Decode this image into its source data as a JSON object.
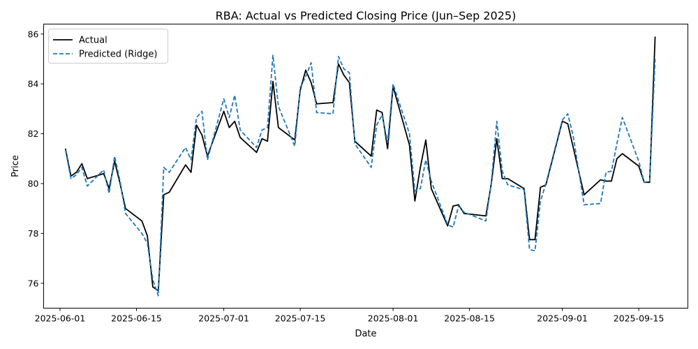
{
  "chart_data": {
    "type": "line",
    "title": "RBA: Actual vs Predicted Closing Price (Jun–Sep 2025)",
    "xlabel": "Date",
    "ylabel": "Price",
    "xlim": [
      "2025-05-29",
      "2025-09-24"
    ],
    "ylim": [
      75.0,
      86.4
    ],
    "x_ticks": [
      "2025-06-01",
      "2025-06-15",
      "2025-07-01",
      "2025-07-15",
      "2025-08-01",
      "2025-08-15",
      "2025-09-01",
      "2025-09-15"
    ],
    "y_ticks": [
      76,
      78,
      80,
      82,
      84,
      86
    ],
    "legend_position": "top-left",
    "grid": false,
    "series": [
      {
        "name": "Actual",
        "color": "#000000",
        "style": "solid",
        "points": [
          [
            "2025-06-02",
            81.4
          ],
          [
            "2025-06-03",
            80.3
          ],
          [
            "2025-06-04",
            80.45
          ],
          [
            "2025-06-05",
            80.8
          ],
          [
            "2025-06-06",
            80.2
          ],
          [
            "2025-06-09",
            80.4
          ],
          [
            "2025-06-10",
            79.8
          ],
          [
            "2025-06-11",
            80.9
          ],
          [
            "2025-06-12",
            80.0
          ],
          [
            "2025-06-13",
            79.0
          ],
          [
            "2025-06-16",
            78.5
          ],
          [
            "2025-06-17",
            77.9
          ],
          [
            "2025-06-18",
            75.85
          ],
          [
            "2025-06-19",
            75.7
          ],
          [
            "2025-06-20",
            79.55
          ],
          [
            "2025-06-21",
            79.65
          ],
          [
            "2025-06-24",
            80.75
          ],
          [
            "2025-06-25",
            80.45
          ],
          [
            "2025-06-26",
            82.35
          ],
          [
            "2025-06-27",
            81.95
          ],
          [
            "2025-06-28",
            81.1
          ],
          [
            "2025-07-01",
            82.9
          ],
          [
            "2025-07-02",
            82.25
          ],
          [
            "2025-07-03",
            82.5
          ],
          [
            "2025-07-04",
            81.85
          ],
          [
            "2025-07-07",
            81.25
          ],
          [
            "2025-07-08",
            81.8
          ],
          [
            "2025-07-09",
            81.7
          ],
          [
            "2025-07-10",
            84.1
          ],
          [
            "2025-07-11",
            82.25
          ],
          [
            "2025-07-14",
            81.75
          ],
          [
            "2025-07-15",
            83.75
          ],
          [
            "2025-07-16",
            84.55
          ],
          [
            "2025-07-17",
            84.05
          ],
          [
            "2025-07-18",
            83.2
          ],
          [
            "2025-07-21",
            83.25
          ],
          [
            "2025-07-22",
            84.8
          ],
          [
            "2025-07-23",
            84.35
          ],
          [
            "2025-07-24",
            84.05
          ],
          [
            "2025-07-25",
            81.7
          ],
          [
            "2025-07-28",
            81.1
          ],
          [
            "2025-07-29",
            82.95
          ],
          [
            "2025-07-30",
            82.85
          ],
          [
            "2025-07-31",
            81.4
          ],
          [
            "2025-08-01",
            83.9
          ],
          [
            "2025-08-04",
            81.55
          ],
          [
            "2025-08-05",
            79.3
          ],
          [
            "2025-08-06",
            80.65
          ],
          [
            "2025-08-07",
            81.75
          ],
          [
            "2025-08-08",
            79.8
          ],
          [
            "2025-08-11",
            78.3
          ],
          [
            "2025-08-12",
            79.1
          ],
          [
            "2025-08-13",
            79.15
          ],
          [
            "2025-08-14",
            78.8
          ],
          [
            "2025-08-18",
            78.7
          ],
          [
            "2025-08-19",
            80.0
          ],
          [
            "2025-08-20",
            81.8
          ],
          [
            "2025-08-21",
            80.2
          ],
          [
            "2025-08-22",
            80.2
          ],
          [
            "2025-08-25",
            79.8
          ],
          [
            "2025-08-26",
            77.75
          ],
          [
            "2025-08-27",
            77.75
          ],
          [
            "2025-08-28",
            79.85
          ],
          [
            "2025-08-29",
            79.95
          ],
          [
            "2025-09-01",
            82.5
          ],
          [
            "2025-09-02",
            82.4
          ],
          [
            "2025-09-05",
            79.55
          ],
          [
            "2025-09-08",
            80.15
          ],
          [
            "2025-09-09",
            80.1
          ],
          [
            "2025-09-10",
            80.1
          ],
          [
            "2025-09-11",
            81.0
          ],
          [
            "2025-09-12",
            81.2
          ],
          [
            "2025-09-15",
            80.7
          ],
          [
            "2025-09-16",
            80.05
          ],
          [
            "2025-09-17",
            80.05
          ],
          [
            "2025-09-18",
            85.9
          ]
        ]
      },
      {
        "name": "Predicted (Ridge)",
        "color": "#1f77b4",
        "style": "dashed",
        "points": [
          [
            "2025-06-02",
            81.35
          ],
          [
            "2025-06-03",
            80.2
          ],
          [
            "2025-06-04",
            80.35
          ],
          [
            "2025-06-05",
            80.65
          ],
          [
            "2025-06-06",
            79.9
          ],
          [
            "2025-06-09",
            80.55
          ],
          [
            "2025-06-10",
            79.6
          ],
          [
            "2025-06-11",
            81.1
          ],
          [
            "2025-06-12",
            80.1
          ],
          [
            "2025-06-13",
            78.8
          ],
          [
            "2025-06-16",
            78.0
          ],
          [
            "2025-06-17",
            77.6
          ],
          [
            "2025-06-18",
            76.15
          ],
          [
            "2025-06-19",
            75.5
          ],
          [
            "2025-06-20",
            80.65
          ],
          [
            "2025-06-21",
            80.45
          ],
          [
            "2025-06-24",
            81.45
          ],
          [
            "2025-06-25",
            80.95
          ],
          [
            "2025-06-26",
            82.65
          ],
          [
            "2025-06-27",
            82.9
          ],
          [
            "2025-06-28",
            80.95
          ],
          [
            "2025-07-01",
            83.4
          ],
          [
            "2025-07-02",
            82.65
          ],
          [
            "2025-07-03",
            83.55
          ],
          [
            "2025-07-04",
            82.15
          ],
          [
            "2025-07-07",
            81.45
          ],
          [
            "2025-07-08",
            82.15
          ],
          [
            "2025-07-09",
            82.25
          ],
          [
            "2025-07-10",
            85.15
          ],
          [
            "2025-07-11",
            83.1
          ],
          [
            "2025-07-14",
            81.5
          ],
          [
            "2025-07-15",
            83.85
          ],
          [
            "2025-07-16",
            84.3
          ],
          [
            "2025-07-17",
            84.85
          ],
          [
            "2025-07-18",
            82.85
          ],
          [
            "2025-07-21",
            82.8
          ],
          [
            "2025-07-22",
            85.1
          ],
          [
            "2025-07-23",
            84.6
          ],
          [
            "2025-07-24",
            84.45
          ],
          [
            "2025-07-25",
            81.6
          ],
          [
            "2025-07-28",
            80.65
          ],
          [
            "2025-07-29",
            82.35
          ],
          [
            "2025-07-30",
            82.75
          ],
          [
            "2025-07-31",
            81.65
          ],
          [
            "2025-08-01",
            84.0
          ],
          [
            "2025-08-04",
            82.0
          ],
          [
            "2025-08-05",
            79.7
          ],
          [
            "2025-08-06",
            79.8
          ],
          [
            "2025-08-07",
            80.95
          ],
          [
            "2025-08-08",
            80.1
          ],
          [
            "2025-08-11",
            78.35
          ],
          [
            "2025-08-12",
            78.25
          ],
          [
            "2025-08-13",
            79.1
          ],
          [
            "2025-08-14",
            78.85
          ],
          [
            "2025-08-18",
            78.5
          ],
          [
            "2025-08-19",
            80.05
          ],
          [
            "2025-08-20",
            82.5
          ],
          [
            "2025-08-21",
            80.5
          ],
          [
            "2025-08-22",
            79.95
          ],
          [
            "2025-08-25",
            79.75
          ],
          [
            "2025-08-26",
            77.35
          ],
          [
            "2025-08-27",
            77.3
          ],
          [
            "2025-08-28",
            79.3
          ],
          [
            "2025-08-29",
            80.0
          ],
          [
            "2025-09-01",
            82.55
          ],
          [
            "2025-09-02",
            82.8
          ],
          [
            "2025-09-03",
            81.9
          ],
          [
            "2025-09-05",
            79.15
          ],
          [
            "2025-09-08",
            79.2
          ],
          [
            "2025-09-09",
            80.45
          ],
          [
            "2025-09-10",
            80.5
          ],
          [
            "2025-09-11",
            81.6
          ],
          [
            "2025-09-12",
            82.65
          ],
          [
            "2025-09-15",
            80.9
          ],
          [
            "2025-09-16",
            80.05
          ],
          [
            "2025-09-17",
            80.1
          ],
          [
            "2025-09-18",
            85.0
          ]
        ]
      }
    ]
  }
}
